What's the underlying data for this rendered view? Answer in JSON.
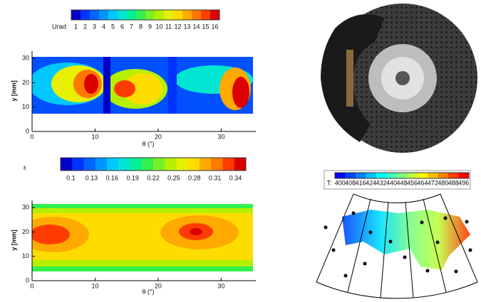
{
  "chart_data": [
    {
      "type": "contour",
      "colorbar_label": "Urad:",
      "colorbar_ticks": [
        1,
        2,
        3,
        4,
        5,
        6,
        7,
        8,
        9,
        10,
        11,
        12,
        13,
        14,
        15,
        16
      ],
      "colors": [
        "#0000c8",
        "#0032ff",
        "#0064ff",
        "#0096ff",
        "#00c8ff",
        "#00e6d2",
        "#00f096",
        "#32f050",
        "#78f028",
        "#b4f000",
        "#e6f000",
        "#ffdc00",
        "#ffaa00",
        "#ff7800",
        "#ff3c00",
        "#dc0000"
      ],
      "xlabel": "θ (°)",
      "ylabel": "y [mm]",
      "xlim": [
        0,
        35.5
      ],
      "ylim": [
        0,
        33
      ],
      "xticks": [
        0,
        10,
        20,
        30
      ],
      "yticks": [
        0,
        10,
        20,
        30
      ]
    },
    {
      "type": "contour",
      "colorbar_label": "ε",
      "colorbar_ticks": [
        0.1,
        0.13,
        0.16,
        0.19,
        0.22,
        0.25,
        0.28,
        0.31,
        0.34
      ],
      "colors": [
        "#0000c8",
        "#0032ff",
        "#0064ff",
        "#0096ff",
        "#00c8ff",
        "#00e6d2",
        "#00f096",
        "#32f050",
        "#78f028",
        "#b4f000",
        "#e6f000",
        "#ffdc00",
        "#ffaa00",
        "#ff7800",
        "#ff3c00",
        "#dc0000"
      ],
      "xlabel": "θ (°)",
      "ylabel": "y [mm]",
      "xlim": [
        0,
        35.5
      ],
      "ylim": [
        0,
        33
      ],
      "xticks": [
        0,
        10,
        20,
        30
      ],
      "yticks": [
        0,
        10,
        20,
        30
      ]
    },
    {
      "type": "contour",
      "colorbar_label": "T:",
      "colorbar_ticks": [
        400,
        408,
        416,
        424,
        432,
        440,
        448,
        456,
        464,
        472,
        480,
        488,
        496
      ],
      "colors": [
        "#0000ff",
        "#0040ff",
        "#0080ff",
        "#00c0ff",
        "#00ffff",
        "#40ffc0",
        "#80ff80",
        "#c0ff40",
        "#ffff00",
        "#ffc000",
        "#ff8000",
        "#ff4000",
        "#ff0000"
      ]
    }
  ]
}
